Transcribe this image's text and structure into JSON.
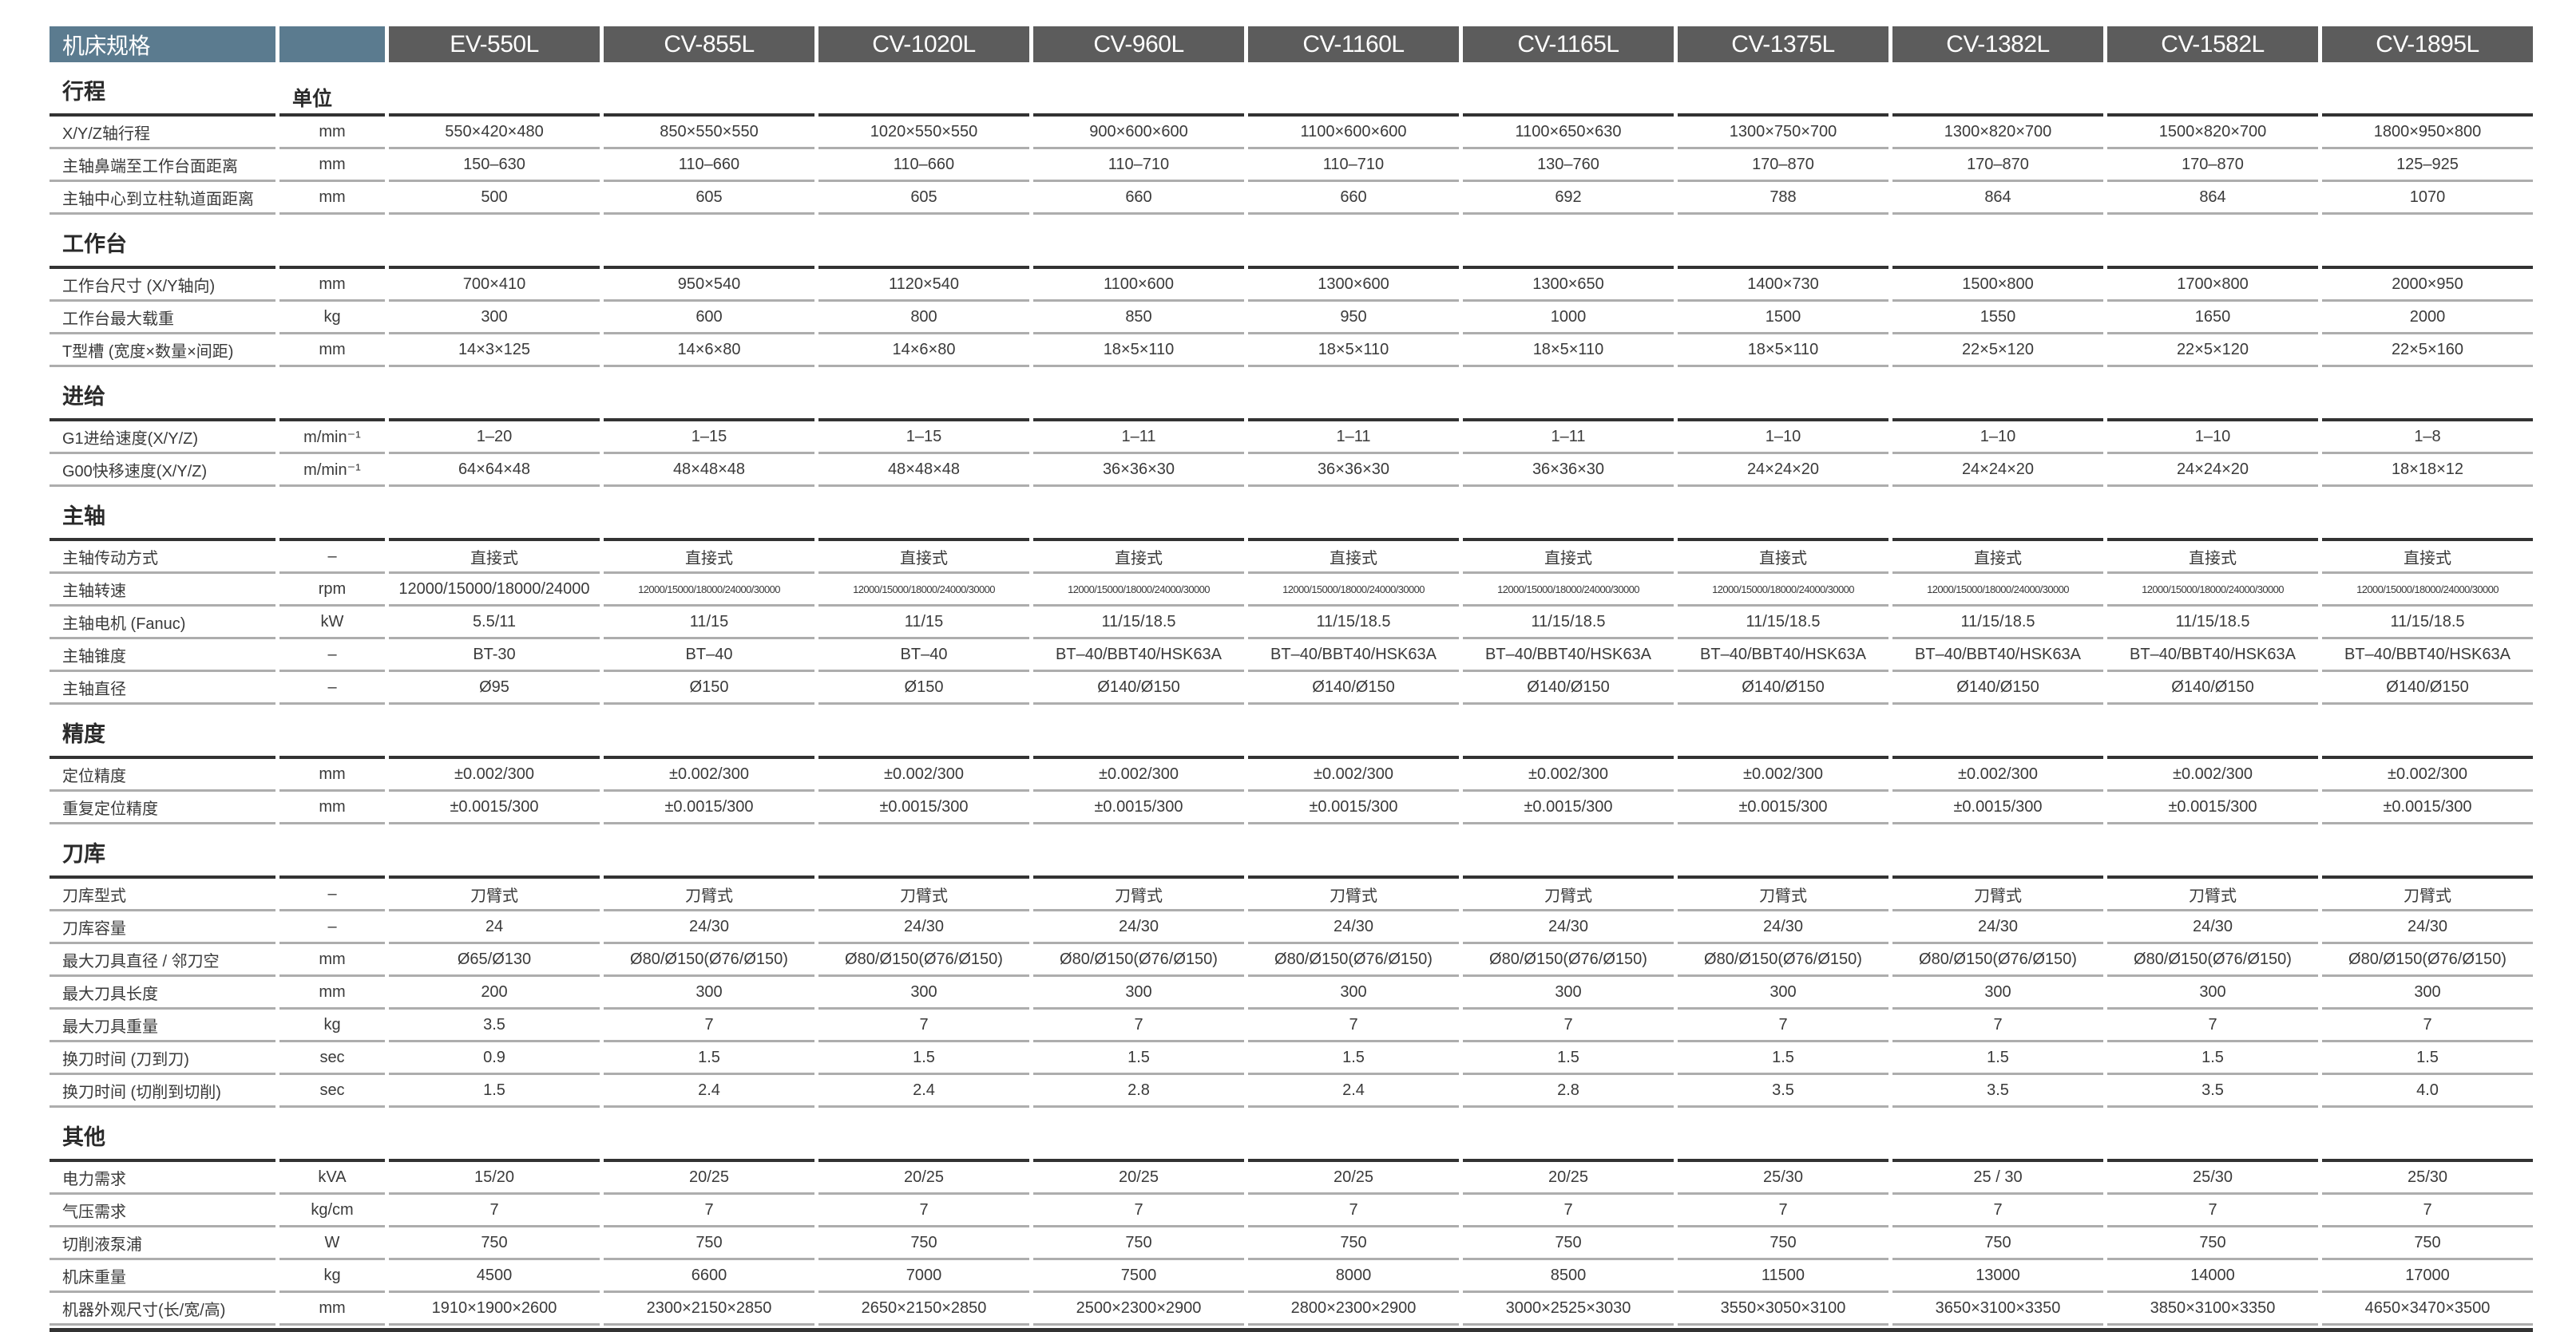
{
  "header": {
    "title": "机床规格"
  },
  "unit_heading": "单位",
  "models": [
    "EV-550L",
    "CV-855L",
    "CV-1020L",
    "CV-960L",
    "CV-1160L",
    "CV-1165L",
    "CV-1375L",
    "CV-1382L",
    "CV-1582L",
    "CV-1895L"
  ],
  "colors": {
    "title_bg": "#5b7b8f",
    "model_bg": "#5c5c5c",
    "section_line": "#333333",
    "row_line": "#adadad"
  },
  "sections": [
    {
      "title": "行程",
      "rows": [
        {
          "label": "X/Y/Z轴行程",
          "unit": "mm",
          "values": [
            "550×420×480",
            "850×550×550",
            "1020×550×550",
            "900×600×600",
            "1100×600×600",
            "1100×650×630",
            "1300×750×700",
            "1300×820×700",
            "1500×820×700",
            "1800×950×800"
          ]
        },
        {
          "label": "主轴鼻端至工作台面距离",
          "unit": "mm",
          "values": [
            "150–630",
            "110–660",
            "110–660",
            "110–710",
            "110–710",
            "130–760",
            "170–870",
            "170–870",
            "170–870",
            "125–925"
          ]
        },
        {
          "label": "主轴中心到立柱轨道面距离",
          "unit": "mm",
          "values": [
            "500",
            "605",
            "605",
            "660",
            "660",
            "692",
            "788",
            "864",
            "864",
            "1070"
          ]
        }
      ]
    },
    {
      "title": "工作台",
      "rows": [
        {
          "label": "工作台尺寸 (X/Y轴向)",
          "unit": "mm",
          "values": [
            "700×410",
            "950×540",
            "1120×540",
            "1100×600",
            "1300×600",
            "1300×650",
            "1400×730",
            "1500×800",
            "1700×800",
            "2000×950"
          ]
        },
        {
          "label": "工作台最大载重",
          "unit": "kg",
          "values": [
            "300",
            "600",
            "800",
            "850",
            "950",
            "1000",
            "1500",
            "1550",
            "1650",
            "2000"
          ]
        },
        {
          "label": "T型槽 (宽度×数量×间距)",
          "unit": "mm",
          "values": [
            "14×3×125",
            "14×6×80",
            "14×6×80",
            "18×5×110",
            "18×5×110",
            "18×5×110",
            "18×5×110",
            "22×5×120",
            "22×5×120",
            "22×5×160"
          ]
        }
      ]
    },
    {
      "title": "进给",
      "rows": [
        {
          "label": "G1进给速度(X/Y/Z)",
          "unit": "m/min⁻¹",
          "values": [
            "1–20",
            "1–15",
            "1–15",
            "1–11",
            "1–11",
            "1–11",
            "1–10",
            "1–10",
            "1–10",
            "1–8"
          ]
        },
        {
          "label": "G00快移速度(X/Y/Z)",
          "unit": "m/min⁻¹",
          "values": [
            "64×64×48",
            "48×48×48",
            "48×48×48",
            "36×36×30",
            "36×36×30",
            "36×36×30",
            "24×24×20",
            "24×24×20",
            "24×24×20",
            "18×18×12"
          ]
        }
      ]
    },
    {
      "title": "主轴",
      "rows": [
        {
          "label": "主轴传动方式",
          "unit": "–",
          "values": [
            "直接式",
            "直接式",
            "直接式",
            "直接式",
            "直接式",
            "直接式",
            "直接式",
            "直接式",
            "直接式",
            "直接式"
          ]
        },
        {
          "label": "主轴转速",
          "unit": "rpm",
          "small": true,
          "values": [
            "12000/15000/18000/24000",
            "12000/15000/18000/24000/30000",
            "12000/15000/18000/24000/30000",
            "12000/15000/18000/24000/30000",
            "12000/15000/18000/24000/30000",
            "12000/15000/18000/24000/30000",
            "12000/15000/18000/24000/30000",
            "12000/15000/18000/24000/30000",
            "12000/15000/18000/24000/30000",
            "12000/15000/18000/24000/30000"
          ]
        },
        {
          "label": "主轴电机 (Fanuc)",
          "unit": "kW",
          "values": [
            "5.5/11",
            "11/15",
            "11/15",
            "11/15/18.5",
            "11/15/18.5",
            "11/15/18.5",
            "11/15/18.5",
            "11/15/18.5",
            "11/15/18.5",
            "11/15/18.5"
          ]
        },
        {
          "label": "主轴锥度",
          "unit": "–",
          "values": [
            "BT-30",
            "BT–40",
            "BT–40",
            "BT–40/BBT40/HSK63A",
            "BT–40/BBT40/HSK63A",
            "BT–40/BBT40/HSK63A",
            "BT–40/BBT40/HSK63A",
            "BT–40/BBT40/HSK63A",
            "BT–40/BBT40/HSK63A",
            "BT–40/BBT40/HSK63A"
          ]
        },
        {
          "label": "主轴直径",
          "unit": "–",
          "values": [
            "Ø95",
            "Ø150",
            "Ø150",
            "Ø140/Ø150",
            "Ø140/Ø150",
            "Ø140/Ø150",
            "Ø140/Ø150",
            "Ø140/Ø150",
            "Ø140/Ø150",
            "Ø140/Ø150"
          ]
        }
      ]
    },
    {
      "title": "精度",
      "rows": [
        {
          "label": "定位精度",
          "unit": "mm",
          "values": [
            "±0.002/300",
            "±0.002/300",
            "±0.002/300",
            "±0.002/300",
            "±0.002/300",
            "±0.002/300",
            "±0.002/300",
            "±0.002/300",
            "±0.002/300",
            "±0.002/300"
          ]
        },
        {
          "label": "重复定位精度",
          "unit": "mm",
          "values": [
            "±0.0015/300",
            "±0.0015/300",
            "±0.0015/300",
            "±0.0015/300",
            "±0.0015/300",
            "±0.0015/300",
            "±0.0015/300",
            "±0.0015/300",
            "±0.0015/300",
            "±0.0015/300"
          ]
        }
      ]
    },
    {
      "title": "刀库",
      "rows": [
        {
          "label": "刀库型式",
          "unit": "–",
          "values": [
            "刀臂式",
            "刀臂式",
            "刀臂式",
            "刀臂式",
            "刀臂式",
            "刀臂式",
            "刀臂式",
            "刀臂式",
            "刀臂式",
            "刀臂式"
          ]
        },
        {
          "label": "刀库容量",
          "unit": "–",
          "values": [
            "24",
            "24/30",
            "24/30",
            "24/30",
            "24/30",
            "24/30",
            "24/30",
            "24/30",
            "24/30",
            "24/30"
          ]
        },
        {
          "label": "最大刀具直径 / 邻刀空",
          "unit": "mm",
          "values": [
            "Ø65/Ø130",
            "Ø80/Ø150(Ø76/Ø150)",
            "Ø80/Ø150(Ø76/Ø150)",
            "Ø80/Ø150(Ø76/Ø150)",
            "Ø80/Ø150(Ø76/Ø150)",
            "Ø80/Ø150(Ø76/Ø150)",
            "Ø80/Ø150(Ø76/Ø150)",
            "Ø80/Ø150(Ø76/Ø150)",
            "Ø80/Ø150(Ø76/Ø150)",
            "Ø80/Ø150(Ø76/Ø150)"
          ]
        },
        {
          "label": "最大刀具长度",
          "unit": "mm",
          "values": [
            "200",
            "300",
            "300",
            "300",
            "300",
            "300",
            "300",
            "300",
            "300",
            "300"
          ]
        },
        {
          "label": "最大刀具重量",
          "unit": "kg",
          "values": [
            "3.5",
            "7",
            "7",
            "7",
            "7",
            "7",
            "7",
            "7",
            "7",
            "7"
          ]
        },
        {
          "label": "换刀时间 (刀到刀)",
          "unit": "sec",
          "values": [
            "0.9",
            "1.5",
            "1.5",
            "1.5",
            "1.5",
            "1.5",
            "1.5",
            "1.5",
            "1.5",
            "1.5"
          ]
        },
        {
          "label": "换刀时间 (切削到切削)",
          "unit": "sec",
          "values": [
            "1.5",
            "2.4",
            "2.4",
            "2.8",
            "2.4",
            "2.8",
            "3.5",
            "3.5",
            "3.5",
            "4.0"
          ]
        }
      ]
    },
    {
      "title": "其他",
      "rows": [
        {
          "label": "电力需求",
          "unit": "kVA",
          "values": [
            "15/20",
            "20/25",
            "20/25",
            "20/25",
            "20/25",
            "20/25",
            "25/30",
            "25 / 30",
            "25/30",
            "25/30"
          ]
        },
        {
          "label": "气压需求",
          "unit": "kg/cm",
          "values": [
            "7",
            "7",
            "7",
            "7",
            "7",
            "7",
            "7",
            "7",
            "7",
            "7"
          ]
        },
        {
          "label": "切削液泵浦",
          "unit": "W",
          "values": [
            "750",
            "750",
            "750",
            "750",
            "750",
            "750",
            "750",
            "750",
            "750",
            "750"
          ]
        },
        {
          "label": "机床重量",
          "unit": "kg",
          "values": [
            "4500",
            "6600",
            "7000",
            "7500",
            "8000",
            "8500",
            "11500",
            "13000",
            "14000",
            "17000"
          ]
        },
        {
          "label": "机器外观尺寸(长/宽/高)",
          "unit": "mm",
          "values": [
            "1910×1900×2600",
            "2300×2150×2850",
            "2650×2150×2850",
            "2500×2300×2900",
            "2800×2300×2900",
            "3000×2525×3030",
            "3550×3050×3100",
            "3650×3100×3350",
            "3850×3100×3350",
            "4650×3470×3500"
          ]
        }
      ]
    }
  ]
}
